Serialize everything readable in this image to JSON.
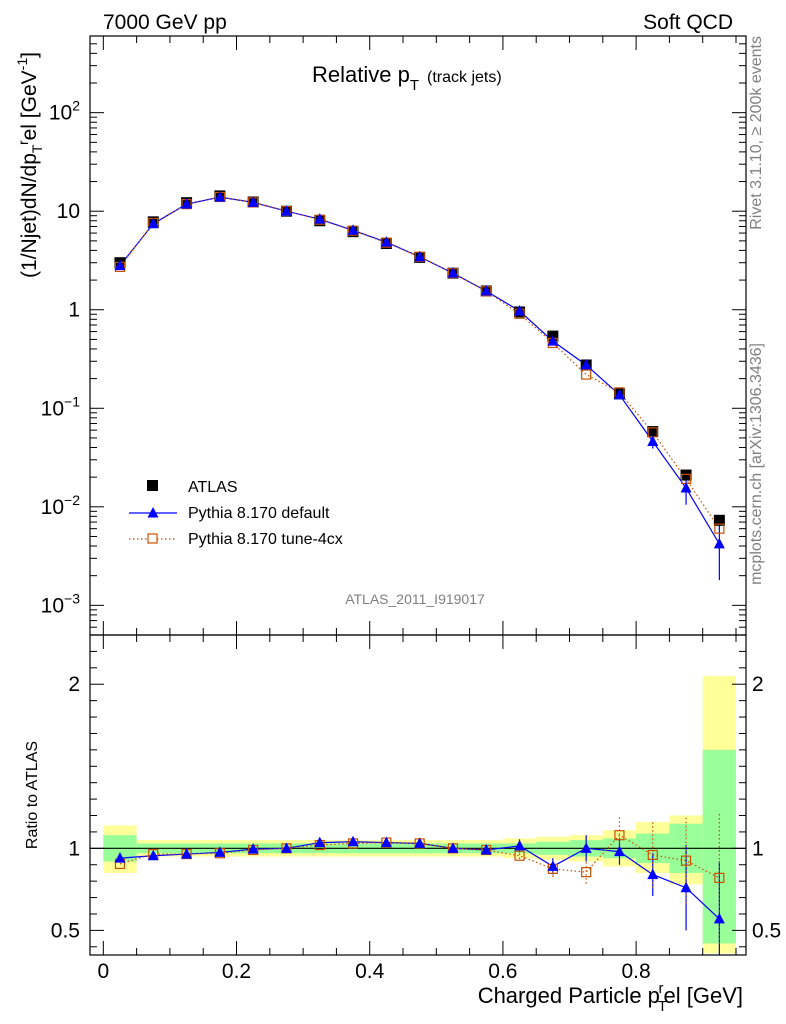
{
  "header": {
    "left": "7000 GeV pp",
    "right": "Soft QCD"
  },
  "side_text": {
    "rivet": "Rivet 3.1.10, ≥ 200k events",
    "mcplots": "mcplots.cern.ch [arXiv:1306.3436]"
  },
  "analysis_id": "ATLAS_2011_I919017",
  "chart_data": [
    {
      "panel": "main",
      "type": "scatter",
      "title": "Relative p_T (track jets)",
      "title_main": "Relative p",
      "title_sub": "T",
      "title_extra": "(track jets)",
      "ylabel": "(1/Njet)dN/dp_T^rel [GeV^-1]",
      "yscale": "log",
      "ylim": [
        0.0005,
        600
      ],
      "xlim": [
        -0.02,
        0.965
      ],
      "y_ticks": [
        {
          "value": 0.001,
          "base": "10",
          "exp": "−3"
        },
        {
          "value": 0.01,
          "base": "10",
          "exp": "−2"
        },
        {
          "value": 0.1,
          "base": "10",
          "exp": "−1"
        },
        {
          "value": 1,
          "base": "1",
          "exp": ""
        },
        {
          "value": 10,
          "base": "10",
          "exp": ""
        },
        {
          "value": 100,
          "base": "10",
          "exp": "2"
        }
      ],
      "x": [
        0.025,
        0.075,
        0.125,
        0.175,
        0.225,
        0.275,
        0.325,
        0.375,
        0.425,
        0.475,
        0.525,
        0.575,
        0.625,
        0.675,
        0.725,
        0.775,
        0.825,
        0.875,
        0.925
      ],
      "series": [
        {
          "name": "ATLAS",
          "color": "#000000",
          "marker": "square",
          "values": [
            3.0,
            7.8,
            12.2,
            14.3,
            12.4,
            10.0,
            8.0,
            6.2,
            4.7,
            3.4,
            2.35,
            1.55,
            0.95,
            0.54,
            0.275,
            0.14,
            0.058,
            0.021,
            0.0073
          ]
        },
        {
          "name": "Pythia 8.170 default",
          "color": "#0000ff",
          "marker": "triangle",
          "values": [
            2.8,
            7.45,
            11.8,
            13.9,
            12.3,
            10.0,
            8.3,
            6.4,
            4.85,
            3.45,
            2.35,
            1.55,
            0.97,
            0.48,
            0.275,
            0.137,
            0.046,
            0.0155,
            0.0042
          ],
          "errors": [
            0,
            0,
            0,
            0,
            0,
            0,
            0,
            0,
            0,
            0,
            0,
            0,
            0,
            0,
            0,
            0,
            0.007,
            0.005,
            0.0024
          ]
        },
        {
          "name": "Pythia 8.170 tune-4cx",
          "color": "#c85000",
          "marker": "open-square",
          "values": [
            2.72,
            7.6,
            11.8,
            13.95,
            12.3,
            10.05,
            8.2,
            6.35,
            4.8,
            3.45,
            2.35,
            1.54,
            0.91,
            0.46,
            0.22,
            0.145,
            0.057,
            0.0192,
            0.006
          ]
        }
      ]
    },
    {
      "panel": "ratio",
      "type": "scatter",
      "ylabel": "Ratio to ATLAS",
      "xlabel": "Charged Particle p_T^rel [GeV]",
      "xlabel_main": "Charged Particle p",
      "xlabel_sub": "T",
      "xlabel_sup": "r",
      "xlabel_tail": "el [GeV]",
      "ylim": [
        0.35,
        2.3
      ],
      "xlim": [
        -0.02,
        0.965
      ],
      "y_ticks": [
        "0.5",
        "1",
        "2"
      ],
      "x_ticks": [
        "0",
        "0.2",
        "0.4",
        "0.6",
        "0.8"
      ],
      "bin_edges": [
        0.0,
        0.05,
        0.1,
        0.15,
        0.2,
        0.25,
        0.3,
        0.35,
        0.4,
        0.45,
        0.5,
        0.55,
        0.6,
        0.65,
        0.7,
        0.75,
        0.8,
        0.85,
        0.9,
        0.95
      ],
      "band_yellow": [
        [
          0.85,
          1.14
        ],
        [
          0.95,
          1.05
        ],
        [
          0.95,
          1.05
        ],
        [
          0.95,
          1.05
        ],
        [
          0.95,
          1.05
        ],
        [
          0.95,
          1.05
        ],
        [
          0.95,
          1.05
        ],
        [
          0.95,
          1.05
        ],
        [
          0.95,
          1.05
        ],
        [
          0.95,
          1.05
        ],
        [
          0.95,
          1.05
        ],
        [
          0.95,
          1.05
        ],
        [
          0.94,
          1.06
        ],
        [
          0.93,
          1.07
        ],
        [
          0.92,
          1.08
        ],
        [
          0.89,
          1.11
        ],
        [
          0.85,
          1.16
        ],
        [
          0.78,
          1.2
        ],
        [
          0.36,
          2.05
        ]
      ],
      "band_green": [
        [
          0.92,
          1.08
        ],
        [
          0.97,
          1.03
        ],
        [
          0.97,
          1.03
        ],
        [
          0.97,
          1.03
        ],
        [
          0.97,
          1.03
        ],
        [
          0.97,
          1.03
        ],
        [
          0.97,
          1.03
        ],
        [
          0.97,
          1.03
        ],
        [
          0.97,
          1.03
        ],
        [
          0.97,
          1.03
        ],
        [
          0.97,
          1.03
        ],
        [
          0.97,
          1.03
        ],
        [
          0.97,
          1.03
        ],
        [
          0.96,
          1.04
        ],
        [
          0.95,
          1.05
        ],
        [
          0.94,
          1.06
        ],
        [
          0.91,
          1.09
        ],
        [
          0.85,
          1.15
        ],
        [
          0.42,
          1.6
        ]
      ],
      "x": [
        0.025,
        0.075,
        0.125,
        0.175,
        0.225,
        0.275,
        0.325,
        0.375,
        0.425,
        0.475,
        0.525,
        0.575,
        0.625,
        0.675,
        0.725,
        0.775,
        0.825,
        0.875,
        0.925
      ],
      "series": [
        {
          "name": "Pythia 8.170 default",
          "color": "#0000ff",
          "values": [
            0.94,
            0.955,
            0.965,
            0.975,
            0.995,
            1.0,
            1.035,
            1.04,
            1.035,
            1.03,
            1.0,
            0.99,
            1.015,
            0.89,
            1.0,
            0.98,
            0.84,
            0.76,
            0.57
          ],
          "errors": [
            0,
            0,
            0,
            0,
            0,
            0,
            0,
            0,
            0,
            0,
            0,
            0,
            0.04,
            0.05,
            0.08,
            0.08,
            0.13,
            0.26,
            0.35
          ]
        },
        {
          "name": "Pythia 8.170 tune-4cx",
          "color": "#c85000",
          "values": [
            0.905,
            0.965,
            0.965,
            0.97,
            0.99,
            1.0,
            1.02,
            1.03,
            1.035,
            1.03,
            1.0,
            0.99,
            0.955,
            0.875,
            0.855,
            1.08,
            0.96,
            0.925,
            0.82
          ],
          "errors": [
            0,
            0,
            0,
            0,
            0,
            0,
            0,
            0,
            0,
            0,
            0,
            0,
            0.02,
            0.05,
            0.07,
            0.12,
            0.2,
            0.26,
            0.4
          ]
        }
      ]
    }
  ]
}
